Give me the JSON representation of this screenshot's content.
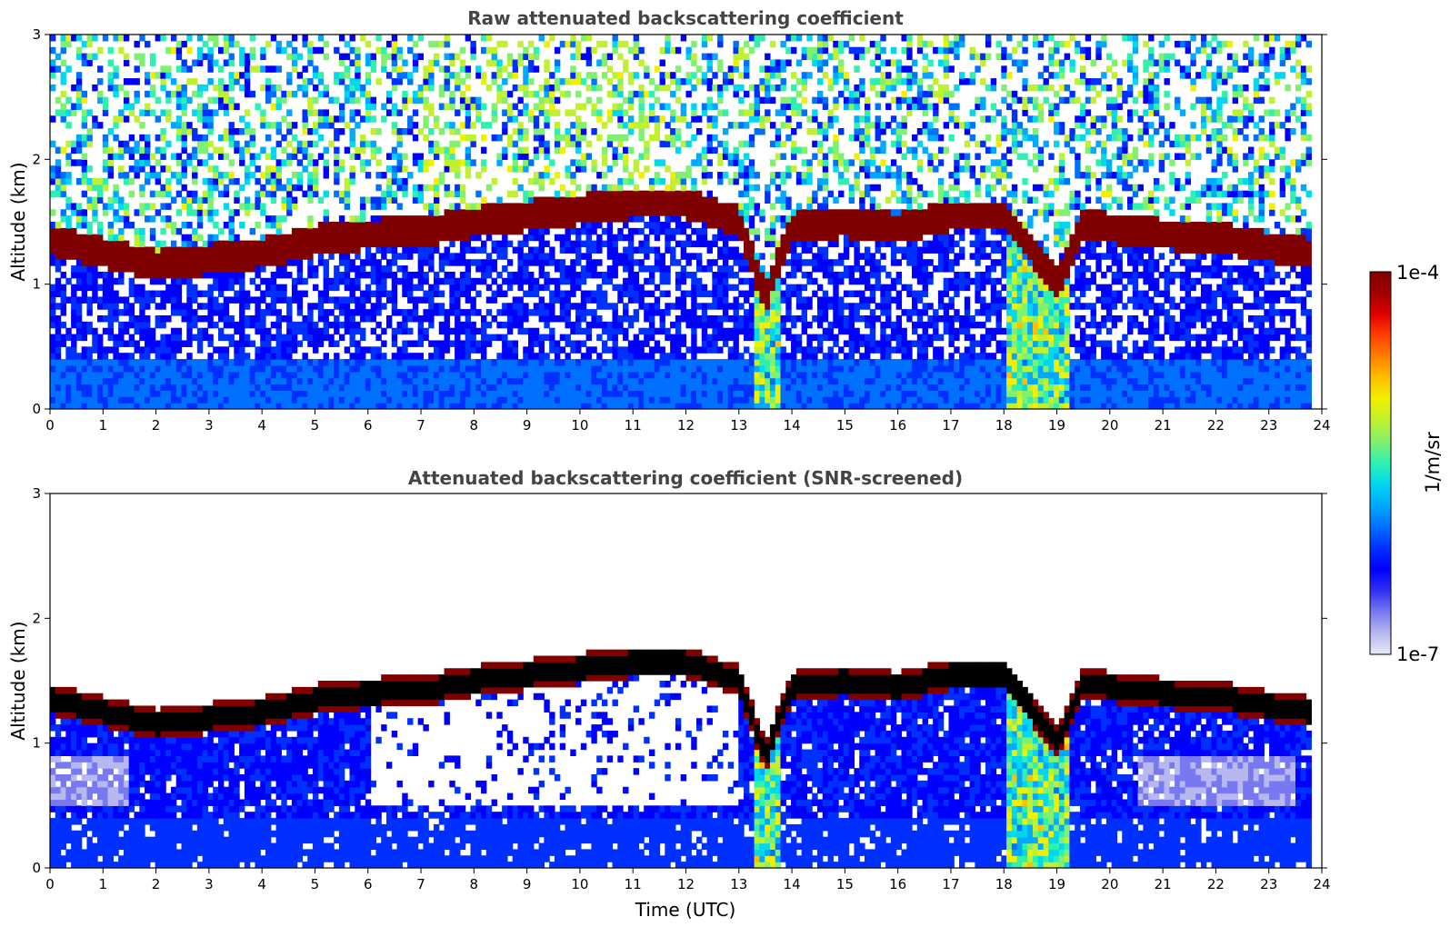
{
  "chart_data": [
    {
      "type": "heatmap",
      "title": "Raw attenuated backscattering coefficient",
      "xlabel": "",
      "ylabel": "Altitude (km)",
      "xlim": [
        0,
        24
      ],
      "ylim": [
        0,
        3
      ],
      "xticks": [
        "0",
        "1",
        "2",
        "3",
        "4",
        "5",
        "6",
        "7",
        "8",
        "9",
        "10",
        "11",
        "12",
        "13",
        "14",
        "15",
        "16",
        "17",
        "18",
        "19",
        "20",
        "21",
        "22",
        "23",
        "24"
      ],
      "yticks": [
        "0",
        "1",
        "2",
        "3"
      ],
      "variant": "raw",
      "cloud_base_km": {
        "time_utc": [
          0,
          1,
          2,
          3,
          4,
          5,
          6,
          7,
          8,
          9,
          10,
          11,
          12,
          13,
          13.5,
          14,
          15,
          16,
          17,
          18,
          18.5,
          19,
          19.5,
          20,
          21,
          22,
          23,
          23.8
        ],
        "altitude": [
          1.35,
          1.25,
          1.15,
          1.2,
          1.25,
          1.35,
          1.4,
          1.42,
          1.5,
          1.55,
          1.6,
          1.65,
          1.65,
          1.5,
          0.9,
          1.45,
          1.5,
          1.45,
          1.55,
          1.55,
          1.3,
          1.0,
          1.5,
          1.45,
          1.4,
          1.38,
          1.3,
          1.25
        ]
      }
    },
    {
      "type": "heatmap",
      "title": "Attenuated backscattering coefficient (SNR-screened)",
      "xlabel": "Time (UTC)",
      "ylabel": "Altitude (km)",
      "xlim": [
        0,
        24
      ],
      "ylim": [
        0,
        3
      ],
      "xticks": [
        "0",
        "1",
        "2",
        "3",
        "4",
        "5",
        "6",
        "7",
        "8",
        "9",
        "10",
        "11",
        "12",
        "13",
        "14",
        "15",
        "16",
        "17",
        "18",
        "19",
        "20",
        "21",
        "22",
        "23",
        "24"
      ],
      "yticks": [
        "0",
        "1",
        "2",
        "3"
      ],
      "variant": "screened"
    }
  ],
  "colorbar": {
    "min_label": "1e-7",
    "max_label": "1e-4",
    "label": "1/m/sr",
    "colors": [
      "#e8e8f8",
      "#b8b8f0",
      "#7878f0",
      "#3030f0",
      "#0000ff",
      "#0030ff",
      "#0070ff",
      "#00a8ff",
      "#00d8f0",
      "#30f0b0",
      "#80f070",
      "#c0f030",
      "#f0f000",
      "#ffc000",
      "#ff8000",
      "#ff4000",
      "#e00000",
      "#a00000",
      "#800000"
    ]
  }
}
